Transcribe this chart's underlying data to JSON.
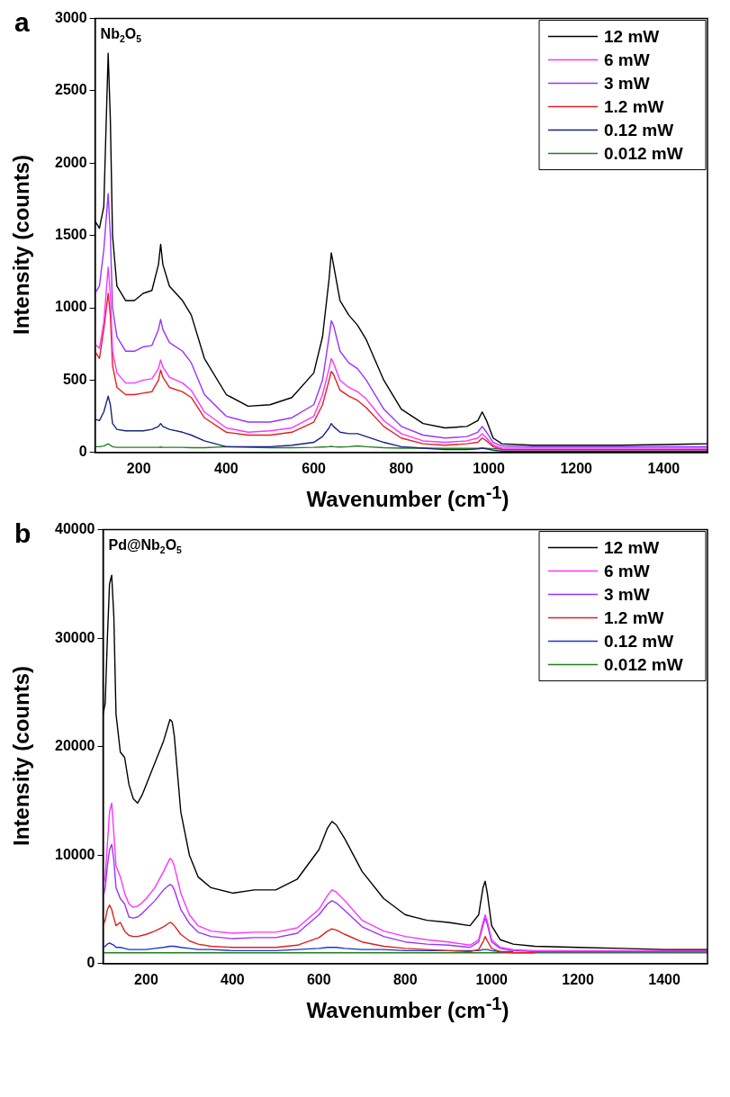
{
  "chart_data": [
    {
      "type": "line",
      "title": "a",
      "annotations": [
        "Nb$_{2}$O$_{5}$"
      ],
      "xlabel": "Wavenumber (cm$^{-1}$)",
      "ylabel": "Intensity (counts)",
      "legend": "top right",
      "grid": false,
      "marker": "none",
      "line_style": "solid",
      "xlim": [
        100,
        1500
      ],
      "xticks": [
        200,
        400,
        600,
        800,
        1000,
        1200,
        1400
      ],
      "ylim": [
        0,
        3000
      ],
      "yticks": [
        0,
        500,
        1000,
        1500,
        2000,
        2500,
        3000
      ],
      "x": [
        100,
        110,
        120,
        130,
        135,
        140,
        150,
        170,
        190,
        210,
        230,
        245,
        250,
        255,
        270,
        300,
        320,
        350,
        400,
        450,
        500,
        550,
        600,
        620,
        635,
        640,
        645,
        660,
        680,
        700,
        720,
        760,
        800,
        850,
        900,
        950,
        975,
        985,
        995,
        1010,
        1030,
        1100,
        1200,
        1300,
        1400,
        1500
      ],
      "series": [
        {
          "name": "12 mW",
          "color": "#000000",
          "values": [
            1600,
            1550,
            1700,
            2760,
            2300,
            1500,
            1150,
            1050,
            1050,
            1100,
            1120,
            1300,
            1440,
            1300,
            1150,
            1050,
            950,
            650,
            400,
            320,
            330,
            380,
            550,
            800,
            1200,
            1380,
            1300,
            1050,
            950,
            880,
            780,
            500,
            300,
            200,
            170,
            180,
            220,
            280,
            220,
            100,
            60,
            50,
            50,
            50,
            55,
            60
          ]
        },
        {
          "name": "6 mW",
          "color": "#ff33ff",
          "values": [
            750,
            720,
            900,
            1280,
            1100,
            700,
            550,
            480,
            480,
            500,
            510,
            580,
            640,
            590,
            520,
            480,
            430,
            280,
            170,
            140,
            150,
            170,
            250,
            400,
            580,
            650,
            620,
            500,
            450,
            420,
            370,
            220,
            130,
            80,
            70,
            80,
            100,
            130,
            100,
            50,
            30,
            30,
            30,
            30,
            30,
            30
          ]
        },
        {
          "name": "3 mW",
          "color": "#9933ff",
          "values": [
            1100,
            1150,
            1400,
            1790,
            1500,
            1000,
            800,
            700,
            700,
            730,
            740,
            850,
            920,
            850,
            760,
            700,
            620,
            400,
            250,
            210,
            210,
            240,
            330,
            500,
            800,
            910,
            880,
            700,
            620,
            580,
            500,
            300,
            180,
            120,
            100,
            110,
            140,
            180,
            140,
            70,
            45,
            40,
            40,
            40,
            40,
            40
          ]
        },
        {
          "name": "1.2 mW",
          "color": "#e02020",
          "values": [
            700,
            650,
            850,
            1100,
            950,
            600,
            450,
            400,
            400,
            410,
            420,
            500,
            570,
            520,
            450,
            420,
            380,
            240,
            140,
            120,
            120,
            140,
            210,
            330,
            500,
            560,
            540,
            430,
            390,
            360,
            310,
            180,
            100,
            60,
            50,
            60,
            70,
            100,
            80,
            40,
            20,
            20,
            20,
            20,
            20,
            20
          ]
        },
        {
          "name": "0.12 mW",
          "color": "#1a237e",
          "values": [
            230,
            220,
            280,
            390,
            330,
            200,
            160,
            150,
            150,
            150,
            160,
            180,
            200,
            180,
            160,
            140,
            120,
            80,
            40,
            40,
            40,
            50,
            70,
            110,
            170,
            200,
            180,
            140,
            130,
            130,
            110,
            70,
            40,
            30,
            20,
            20,
            25,
            30,
            25,
            15,
            10,
            10,
            10,
            10,
            10,
            10
          ]
        },
        {
          "name": "0.012 mW",
          "color": "#208020",
          "values": [
            40,
            40,
            45,
            60,
            50,
            40,
            35,
            35,
            35,
            35,
            35,
            35,
            38,
            35,
            35,
            35,
            33,
            33,
            40,
            35,
            33,
            33,
            35,
            38,
            40,
            42,
            40,
            38,
            40,
            45,
            40,
            33,
            30,
            30,
            28,
            28,
            28,
            30,
            28,
            25,
            25,
            null,
            null,
            null,
            null,
            null
          ]
        }
      ]
    },
    {
      "type": "line",
      "title": "b",
      "annotations": [
        "Pd@Nb$_{2}$O$_{5}$"
      ],
      "xlabel": "Wavenumber (cm$^{-1}$)",
      "ylabel": "Intensity (counts)",
      "legend": "top right",
      "grid": false,
      "marker": "none",
      "line_style": "solid",
      "xlim": [
        100,
        1500
      ],
      "xticks": [
        200,
        400,
        600,
        800,
        1000,
        1200,
        1400
      ],
      "ylim": [
        0,
        40000
      ],
      "yticks": [
        0,
        10000,
        20000,
        30000,
        40000
      ],
      "x": [
        100,
        105,
        110,
        115,
        120,
        125,
        130,
        140,
        150,
        160,
        170,
        180,
        190,
        200,
        220,
        240,
        255,
        260,
        265,
        280,
        300,
        320,
        350,
        400,
        450,
        500,
        550,
        600,
        620,
        630,
        640,
        660,
        700,
        750,
        800,
        850,
        900,
        950,
        970,
        980,
        985,
        990,
        1000,
        1020,
        1050,
        1100,
        1200,
        1300,
        1400,
        1500
      ],
      "series": [
        {
          "name": "12 mW",
          "color": "#000000",
          "values": [
            23000,
            24000,
            30000,
            35000,
            35800,
            32000,
            23000,
            19500,
            19000,
            16500,
            15200,
            14800,
            15500,
            16500,
            18500,
            20500,
            22500,
            22300,
            21000,
            14000,
            10000,
            8000,
            7000,
            6500,
            6800,
            6800,
            7800,
            10500,
            12500,
            13100,
            12800,
            11500,
            8500,
            6000,
            4500,
            4000,
            3800,
            3500,
            4500,
            7000,
            7600,
            6500,
            3500,
            2200,
            1800,
            1600,
            1500,
            1400,
            1300,
            1300
          ]
        },
        {
          "name": "6 mW",
          "color": "#ff33ff",
          "values": [
            7000,
            8000,
            11000,
            14000,
            14800,
            12000,
            9000,
            8000,
            6500,
            5500,
            5200,
            5300,
            5600,
            6000,
            7000,
            8500,
            9700,
            9500,
            9000,
            6500,
            4500,
            3500,
            3000,
            2800,
            2900,
            2900,
            3300,
            5000,
            6300,
            6800,
            6600,
            5800,
            4000,
            3000,
            2500,
            2200,
            2000,
            1700,
            2200,
            3800,
            4500,
            3900,
            2200,
            1500,
            1300,
            1200,
            1200,
            1200,
            1200,
            1200
          ]
        },
        {
          "name": "3 mW",
          "color": "#9933ff",
          "values": [
            6000,
            7000,
            9000,
            10500,
            11000,
            9500,
            7000,
            6000,
            5500,
            4300,
            4200,
            4300,
            4600,
            5000,
            5800,
            6800,
            7300,
            7200,
            6800,
            5000,
            3700,
            2900,
            2500,
            2300,
            2400,
            2400,
            2800,
            4500,
            5500,
            5800,
            5600,
            4900,
            3400,
            2500,
            2000,
            1800,
            1700,
            1500,
            2000,
            3500,
            4200,
            3600,
            2000,
            1400,
            1200,
            1100,
            1100,
            1100,
            1100,
            1100
          ]
        },
        {
          "name": "1.2 mW",
          "color": "#e02020",
          "values": [
            3500,
            4000,
            5000,
            5400,
            5000,
            4200,
            3500,
            3800,
            3000,
            2600,
            2500,
            2500,
            2600,
            2700,
            3000,
            3400,
            3800,
            3700,
            3500,
            2700,
            2100,
            1800,
            1600,
            1500,
            1500,
            1500,
            1700,
            2400,
            3000,
            3200,
            3100,
            2700,
            2000,
            1600,
            1400,
            1300,
            1200,
            1100,
            1300,
            2000,
            2500,
            2100,
            1400,
            1100,
            1000,
            1000,
            null,
            null,
            null,
            null
          ]
        },
        {
          "name": "0.12 mW",
          "color": "#2030d0",
          "values": [
            1500,
            1600,
            1800,
            1900,
            1800,
            1700,
            1500,
            1500,
            1400,
            1300,
            1300,
            1300,
            1300,
            1300,
            1400,
            1500,
            1600,
            1600,
            1600,
            1500,
            1400,
            1300,
            1300,
            1200,
            1200,
            1200,
            1300,
            1400,
            1500,
            1500,
            1500,
            1400,
            1300,
            1300,
            1200,
            1200,
            1200,
            1200,
            1200,
            1300,
            1300,
            1300,
            1200,
            1100,
            1100,
            null,
            null,
            null,
            null,
            null
          ]
        },
        {
          "name": "0.012 mW",
          "color": "#208020",
          "values": [
            1000,
            1000,
            1000,
            1000,
            1000,
            1000,
            1000,
            1000,
            1000,
            1000,
            1000,
            1000,
            1000,
            1000,
            1000,
            1000,
            1000,
            1000,
            1000,
            1000,
            1000,
            1000,
            1000,
            1000,
            1000,
            1000,
            1000,
            1000,
            1000,
            1000,
            1000,
            1000,
            1000,
            1000,
            1000,
            1000,
            1000,
            1000,
            1000,
            1000,
            1000,
            1000,
            1000,
            1000,
            1000,
            1000,
            1000,
            1000,
            1000,
            1000
          ]
        }
      ]
    }
  ]
}
